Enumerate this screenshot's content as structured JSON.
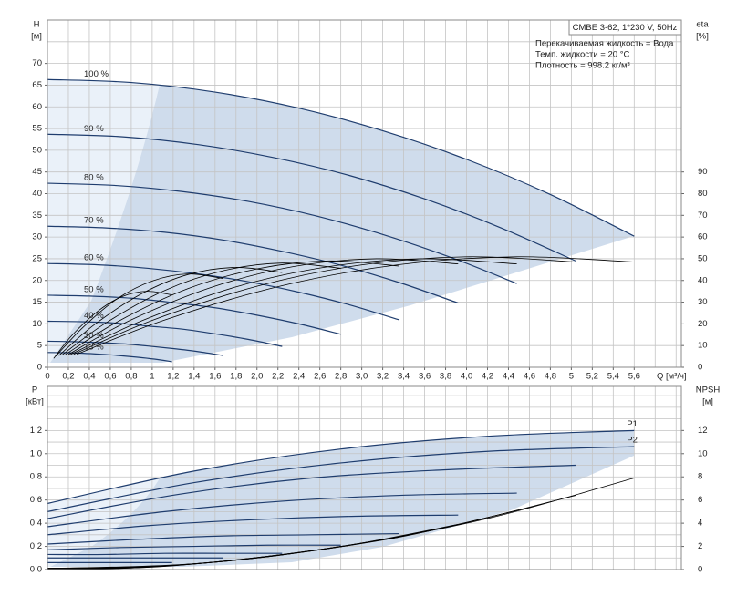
{
  "chart_data": [
    {
      "type": "line",
      "y_label": "H",
      "y_unit": "[м]",
      "y2_label": "eta",
      "y2_unit": "[%]",
      "x_label": "Q [м³/ч]",
      "legend_box": "CMBE 3-62, 1*230 V, 50Hz",
      "notes": [
        "Перекачиваемая жидкость = Вода",
        "Темп. жидкости = 20 °C",
        "Плотность = 998.2 кг/м³"
      ],
      "xlim": [
        0,
        6.05
      ],
      "ylim": [
        0,
        80
      ],
      "y2lim": [
        0,
        160
      ],
      "xticks": [
        0,
        {
          "value": 0.2,
          "label": "0,2"
        },
        {
          "value": 0.4,
          "label": "0,4"
        },
        {
          "value": 0.6,
          "label": "0,6"
        },
        {
          "value": 0.8,
          "label": "0,8"
        },
        1,
        {
          "value": 1.2,
          "label": "1,2"
        },
        {
          "value": 1.4,
          "label": "1,4"
        },
        {
          "value": 1.6,
          "label": "1,6"
        },
        {
          "value": 1.8,
          "label": "1,8"
        },
        {
          "value": 2,
          "label": "2,0"
        },
        {
          "value": 2.2,
          "label": "2,2"
        },
        {
          "value": 2.4,
          "label": "2,4"
        },
        {
          "value": 2.6,
          "label": "2,6"
        },
        {
          "value": 2.8,
          "label": "2,8"
        },
        {
          "value": 3,
          "label": "3,0"
        },
        {
          "value": 3.2,
          "label": "3,2"
        },
        {
          "value": 3.4,
          "label": "3,4"
        },
        {
          "value": 3.6,
          "label": "3,6"
        },
        {
          "value": 3.8,
          "label": "3,8"
        },
        {
          "value": 4,
          "label": "4,0"
        },
        {
          "value": 4.2,
          "label": "4,2"
        },
        {
          "value": 4.4,
          "label": "4,4"
        },
        {
          "value": 4.6,
          "label": "4,6"
        },
        {
          "value": 4.8,
          "label": "4,8"
        },
        5,
        {
          "value": 5.2,
          "label": "5,2"
        },
        {
          "value": 5.4,
          "label": "5,4"
        },
        {
          "value": 5.6,
          "label": "5,6"
        }
      ],
      "yticks": [
        0,
        5,
        10,
        15,
        20,
        25,
        30,
        35,
        40,
        45,
        50,
        55,
        60,
        65,
        70
      ],
      "y2ticks": [
        0,
        10,
        20,
        30,
        40,
        50,
        60,
        70,
        80,
        90
      ],
      "xgrid": [
        0.2,
        0.4,
        0.6,
        0.8,
        1,
        1.2,
        1.4,
        1.6,
        1.8,
        2,
        2.2,
        2.4,
        2.6,
        2.8,
        3,
        3.2,
        3.4,
        3.6,
        3.8,
        4,
        4.2,
        4.4,
        4.6,
        4.8,
        5,
        5.2,
        5.4,
        5.6,
        5.8,
        6
      ],
      "ygrid": [
        5,
        10,
        15,
        20,
        25,
        30,
        35,
        40,
        45,
        50,
        55,
        60,
        65,
        70,
        75
      ],
      "series": [
        {
          "name": "100 %",
          "color": "#1f3d6e",
          "x": [
            0,
            0.8,
            1.6,
            2.4,
            3.2,
            4.0,
            4.8,
            5.6
          ],
          "values": [
            66.3,
            65.6,
            63.4,
            59.7,
            54.5,
            47.9,
            39.8,
            30.2
          ]
        },
        {
          "name": "90 %",
          "color": "#1f3d6e",
          "x": [
            0,
            0.72,
            1.44,
            2.16,
            2.88,
            3.6,
            4.32,
            5.04
          ],
          "values": [
            53.7,
            53.1,
            51.3,
            48.3,
            44.2,
            38.8,
            32.2,
            24.5
          ]
        },
        {
          "name": "80 %",
          "color": "#1f3d6e",
          "x": [
            0,
            0.64,
            1.28,
            1.92,
            2.56,
            3.2,
            3.84,
            4.48
          ],
          "values": [
            42.4,
            41.9,
            40.5,
            38.2,
            34.9,
            30.6,
            25.4,
            19.3
          ]
        },
        {
          "name": "70 %",
          "color": "#1f3d6e",
          "x": [
            0,
            0.56,
            1.12,
            1.68,
            2.24,
            2.8,
            3.36,
            3.92
          ],
          "values": [
            32.5,
            32.1,
            31.1,
            29.3,
            26.7,
            23.5,
            19.5,
            14.8
          ]
        },
        {
          "name": "60 %",
          "color": "#1f3d6e",
          "x": [
            0,
            0.48,
            0.96,
            1.44,
            1.92,
            2.4,
            2.88,
            3.36
          ],
          "values": [
            23.9,
            23.6,
            22.8,
            21.5,
            19.7,
            17.3,
            14.4,
            10.9
          ]
        },
        {
          "name": "50 %",
          "color": "#1f3d6e",
          "x": [
            0,
            0.4,
            0.8,
            1.2,
            1.6,
            2.0,
            2.4,
            2.8
          ],
          "values": [
            16.6,
            16.4,
            15.9,
            14.9,
            13.7,
            12.0,
            10.0,
            7.6
          ]
        },
        {
          "name": "40 %",
          "color": "#1f3d6e",
          "x": [
            0,
            0.32,
            0.64,
            0.96,
            1.28,
            1.6,
            1.92,
            2.24
          ],
          "values": [
            10.6,
            10.5,
            10.2,
            9.5,
            8.8,
            7.7,
            6.4,
            4.8
          ]
        },
        {
          "name": "30 %",
          "color": "#1f3d6e",
          "x": [
            0,
            0.24,
            0.48,
            0.72,
            0.96,
            1.2,
            1.44,
            1.68
          ],
          "values": [
            6.0,
            5.9,
            5.7,
            5.4,
            4.9,
            4.3,
            3.6,
            2.7
          ]
        },
        {
          "name": "13 %",
          "color": "#1f3d6e",
          "x": [
            0,
            0.17,
            0.34,
            0.51,
            0.68,
            0.85,
            1.02,
            1.19
          ],
          "values": [
            3.4,
            3.36,
            3.23,
            3.0,
            2.71,
            2.34,
            1.89,
            1.28
          ]
        },
        {
          "axis": "y2",
          "color": "#000000",
          "x": [
            0.28,
            1.12,
            2.24,
            3.36,
            4.48,
            5.6
          ],
          "values": [
            6.0,
            21.8,
            37.6,
            47.3,
            50.9,
            48.5
          ]
        },
        {
          "axis": "y2",
          "color": "#000000",
          "x": [
            0.25,
            1.01,
            2.02,
            3.02,
            4.03,
            5.04
          ],
          "values": [
            6.0,
            21.8,
            37.6,
            47.3,
            50.9,
            48.5
          ]
        },
        {
          "axis": "y2",
          "color": "#000000",
          "x": [
            0.22,
            0.9,
            1.79,
            2.69,
            3.58,
            4.48
          ],
          "values": [
            5.9,
            21.4,
            36.9,
            46.4,
            50.0,
            47.6
          ]
        },
        {
          "axis": "y2",
          "color": "#000000",
          "x": [
            0.2,
            0.78,
            1.57,
            2.35,
            3.14,
            3.92
          ],
          "values": [
            5.9,
            21.4,
            36.9,
            46.4,
            50.0,
            47.6
          ]
        },
        {
          "axis": "y2",
          "color": "#000000",
          "x": [
            0.17,
            0.67,
            1.34,
            2.02,
            2.69,
            3.36
          ],
          "values": [
            5.8,
            21.0,
            36.2,
            45.5,
            49.0,
            46.6
          ]
        },
        {
          "axis": "y2",
          "color": "#000000",
          "x": [
            0.14,
            0.56,
            1.12,
            1.68,
            2.24,
            2.8
          ],
          "values": [
            5.7,
            20.5,
            35.4,
            44.5,
            48.0,
            45.6
          ]
        },
        {
          "axis": "y2",
          "color": "#000000",
          "x": [
            0.11,
            0.45,
            0.9,
            1.34,
            1.79,
            2.24
          ],
          "values": [
            5.4,
            19.7,
            33.9,
            42.7,
            46.0,
            43.7
          ]
        },
        {
          "axis": "y2",
          "color": "#000000",
          "x": [
            0.08,
            0.34,
            0.67,
            1.01,
            1.34,
            1.68
          ],
          "values": [
            5.1,
            18.4,
            31.7,
            39.9,
            43.0,
            40.9
          ]
        },
        {
          "axis": "y2",
          "color": "#000000",
          "x": [
            0.06,
            0.24,
            0.48,
            0.71,
            0.95,
            1.19
          ],
          "values": [
            4.1,
            15.0,
            25.8,
            32.5,
            35.0,
            33.3
          ]
        }
      ]
    },
    {
      "type": "line",
      "y_label": "P",
      "y_unit": "[кВт]",
      "y2_label": "NPSH",
      "y2_unit": "[м]",
      "xlim": [
        0,
        6.05
      ],
      "ylim": [
        0,
        1.58
      ],
      "y2lim": [
        0,
        15.8
      ],
      "yticks": [
        {
          "value": 0,
          "label": "0.0"
        },
        0.2,
        0.4,
        0.6,
        0.8,
        {
          "value": 1,
          "label": "1.0"
        },
        1.2
      ],
      "y2ticks": [
        0,
        2,
        4,
        6,
        8,
        10,
        12
      ],
      "xgrid": [
        0.2,
        0.4,
        0.6,
        0.8,
        1,
        1.2,
        1.4,
        1.6,
        1.8,
        2,
        2.2,
        2.4,
        2.6,
        2.8,
        3,
        3.2,
        3.4,
        3.6,
        3.8,
        4,
        4.2,
        4.4,
        4.6,
        4.8,
        5,
        5.2,
        5.4,
        5.6,
        5.8,
        6
      ],
      "ygrid": [
        0.1,
        0.2,
        0.3,
        0.4,
        0.5,
        0.6,
        0.7,
        0.8,
        0.9,
        1.0,
        1.1,
        1.2,
        1.3,
        1.4,
        1.5
      ],
      "series": [
        {
          "name": "P1",
          "color": "#1f3d6e",
          "x": [
            0,
            1.4,
            2.8,
            4.2,
            5.6
          ],
          "values": [
            0.57,
            0.85,
            1.04,
            1.15,
            1.2
          ]
        },
        {
          "name": "P2",
          "color": "#1f3d6e",
          "x": [
            0,
            1.4,
            2.8,
            4.2,
            5.6
          ],
          "values": [
            0.5,
            0.75,
            0.92,
            1.02,
            1.06
          ]
        },
        {
          "color": "#1f3d6e",
          "x": [
            0,
            1.26,
            2.52,
            3.78,
            5.04
          ],
          "values": [
            0.44,
            0.65,
            0.79,
            0.86,
            0.9
          ]
        },
        {
          "color": "#1f3d6e",
          "x": [
            0,
            1.12,
            2.24,
            3.36,
            4.48
          ],
          "values": [
            0.37,
            0.5,
            0.59,
            0.64,
            0.66
          ]
        },
        {
          "color": "#1f3d6e",
          "x": [
            0,
            0.98,
            1.96,
            2.94,
            3.92
          ],
          "values": [
            0.3,
            0.38,
            0.43,
            0.46,
            0.47
          ]
        },
        {
          "color": "#1f3d6e",
          "x": [
            0,
            0.84,
            1.68,
            2.52,
            3.36
          ],
          "values": [
            0.22,
            0.26,
            0.29,
            0.3,
            0.31
          ]
        },
        {
          "color": "#1f3d6e",
          "x": [
            0,
            0.7,
            1.4,
            2.1,
            2.8
          ],
          "values": [
            0.17,
            0.19,
            0.2,
            0.21,
            0.21
          ]
        },
        {
          "color": "#1f3d6e",
          "x": [
            0,
            0.56,
            1.12,
            1.68,
            2.24
          ],
          "values": [
            0.13,
            0.13,
            0.14,
            0.14,
            0.14
          ]
        },
        {
          "color": "#1f3d6e",
          "x": [
            0,
            0.42,
            0.84,
            1.26,
            1.68
          ],
          "values": [
            0.1,
            0.1,
            0.1,
            0.1,
            0.1
          ]
        },
        {
          "color": "#1f3d6e",
          "x": [
            0,
            0.3,
            0.6,
            0.89,
            1.19
          ],
          "values": [
            0.06,
            0.06,
            0.06,
            0.06,
            0.06
          ]
        },
        {
          "axis": "y2",
          "color": "#000000",
          "x": [
            0,
            1.4,
            2.8,
            4.2,
            5.6
          ],
          "values": [
            0.1,
            0.5,
            2.0,
            4.4,
            7.9
          ]
        },
        {
          "axis": "y2",
          "color": "#000000",
          "x": [
            0,
            1.26,
            2.52,
            3.78,
            5.04
          ],
          "values": [
            0.1,
            0.4,
            1.6,
            3.6,
            6.4
          ]
        },
        {
          "axis": "y2",
          "color": "#000000",
          "x": [
            0,
            1.12,
            2.24,
            3.36,
            4.48
          ],
          "values": [
            0.1,
            0.3,
            1.3,
            2.8,
            5.1
          ]
        },
        {
          "axis": "y2",
          "color": "#000000",
          "x": [
            0,
            0.98,
            1.96,
            2.94,
            3.92
          ],
          "values": [
            0.1,
            0.2,
            1.0,
            2.2,
            3.9
          ]
        },
        {
          "axis": "y2",
          "color": "#000000",
          "x": [
            0,
            0.84,
            1.68,
            2.52,
            3.36
          ],
          "values": [
            0.1,
            0.2,
            0.7,
            1.6,
            2.8
          ]
        },
        {
          "axis": "y2",
          "color": "#000000",
          "x": [
            0,
            0.7,
            1.4,
            2.1,
            2.8
          ],
          "values": [
            0.1,
            0.1,
            0.5,
            1.1,
            2.0
          ]
        },
        {
          "axis": "y2",
          "color": "#000000",
          "x": [
            0,
            0.56,
            1.12,
            1.68,
            2.24
          ],
          "values": [
            0.1,
            0.1,
            0.3,
            0.7,
            1.3
          ]
        },
        {
          "axis": "y2",
          "color": "#000000",
          "x": [
            0,
            0.42,
            0.84,
            1.26,
            1.68
          ],
          "values": [
            0.1,
            0.1,
            0.2,
            0.4,
            0.7
          ]
        }
      ]
    }
  ]
}
